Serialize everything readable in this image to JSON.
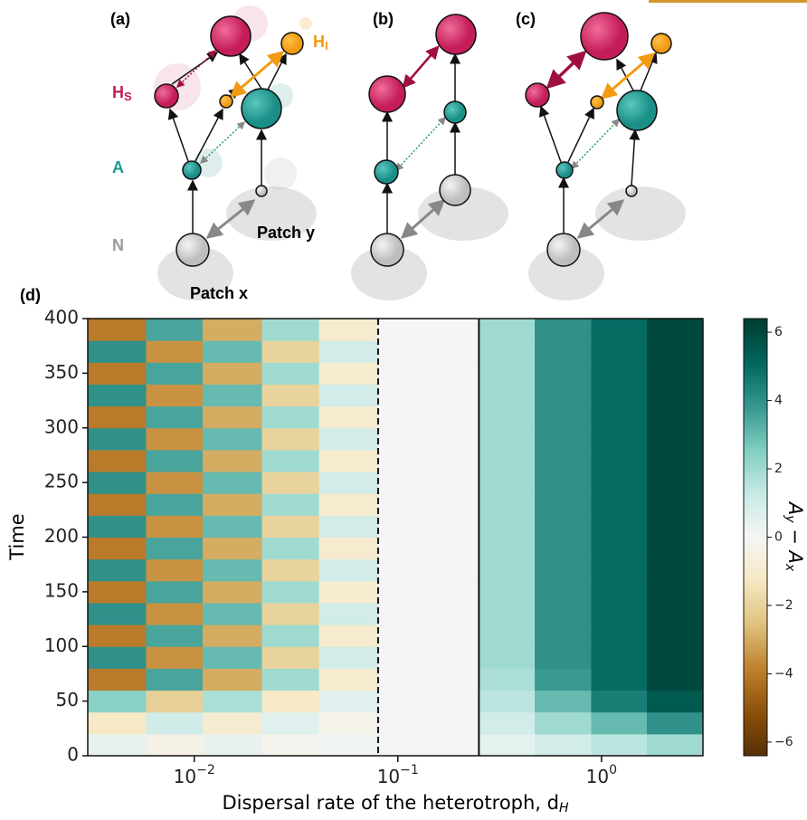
{
  "diagram": {
    "panel_a": "(a)",
    "panel_b": "(b)",
    "panel_c": "(c)",
    "panel_d": "(d)",
    "hs_main": "H",
    "hs_sub": "S",
    "hi_main": "H",
    "hi_sub": "I",
    "a_label": "A",
    "n_label": "N",
    "patch_y": "Patch y",
    "patch_x": "Patch x"
  },
  "chart_data": {
    "type": "heatmap",
    "x_label": "Dispersal rate of the heterotroph, d",
    "x_label_sub": "H",
    "y_label": "Time",
    "xscale": "log",
    "xlim": [
      0.003,
      3.15
    ],
    "ylim": [
      0,
      400
    ],
    "xticks": [
      {
        "value": 0.01,
        "label": "10−2"
      },
      {
        "value": 0.1,
        "label": "10−1"
      },
      {
        "value": 1,
        "label": "100"
      }
    ],
    "yticks": [
      0,
      50,
      100,
      150,
      200,
      250,
      300,
      350,
      400
    ],
    "x_edges": [
      0.003,
      0.0058,
      0.011,
      0.0215,
      0.041,
      0.08,
      0.25,
      0.47,
      0.89,
      1.67,
      3.15
    ],
    "y_edges": [
      0,
      20,
      40,
      60,
      80,
      100,
      120,
      140,
      160,
      180,
      200,
      220,
      240,
      260,
      280,
      300,
      320,
      340,
      360,
      380,
      400
    ],
    "z": [
      [
        0.4,
        -0.35,
        0.3,
        -0.2,
        0.1,
        0,
        0.5,
        1,
        1.5,
        2
      ],
      [
        -1.2,
        1.05,
        -0.9,
        0.6,
        -0.3,
        0,
        1,
        2,
        3,
        4
      ],
      [
        2.4,
        -2.1,
        1.8,
        -1.2,
        0.6,
        0,
        1.5,
        3,
        4.5,
        5.5
      ],
      [
        -4,
        3.5,
        -3,
        2,
        -1,
        0,
        1.8,
        3.8,
        5,
        6
      ],
      [
        4,
        -3.5,
        3,
        -2,
        1,
        0,
        2,
        4,
        5,
        6
      ],
      [
        -4,
        3.5,
        -3,
        2,
        -1,
        0,
        2,
        4,
        5,
        6
      ],
      [
        4,
        -3.5,
        3,
        -2,
        1,
        0,
        2,
        4,
        5,
        6
      ],
      [
        -4,
        3.5,
        -3,
        2,
        -1,
        0,
        2,
        4,
        5,
        6
      ],
      [
        4,
        -3.5,
        3,
        -2,
        1,
        0,
        2,
        4,
        5,
        6
      ],
      [
        -4,
        3.5,
        -3,
        2,
        -1,
        0,
        2,
        4,
        5,
        6
      ],
      [
        4,
        -3.5,
        3,
        -2,
        1,
        0,
        2,
        4,
        5,
        6
      ],
      [
        -4,
        3.5,
        -3,
        2,
        -1,
        0,
        2,
        4,
        5,
        6
      ],
      [
        4,
        -3.5,
        3,
        -2,
        1,
        0,
        2,
        4,
        5,
        6
      ],
      [
        -4,
        3.5,
        -3,
        2,
        -1,
        0,
        2,
        4,
        5,
        6
      ],
      [
        4,
        -3.5,
        3,
        -2,
        1,
        0,
        2,
        4,
        5,
        6
      ],
      [
        -4,
        3.5,
        -3,
        2,
        -1,
        0,
        2,
        4,
        5,
        6
      ],
      [
        4,
        -3.5,
        3,
        -2,
        1,
        0,
        2,
        4,
        5,
        6
      ],
      [
        -4,
        3.5,
        -3,
        2,
        -1,
        0,
        2,
        4,
        5,
        6
      ],
      [
        4,
        -3.5,
        3,
        -2,
        1,
        0,
        2,
        4,
        5,
        6
      ],
      [
        -4,
        3.5,
        -3,
        2,
        -1,
        0,
        2,
        4,
        5,
        6
      ]
    ],
    "vlines": [
      {
        "x": 0.08,
        "style": "dashed"
      },
      {
        "x": 0.25,
        "style": "solid"
      }
    ],
    "colormap": "BrBG",
    "clim": [
      -6.4,
      6.4
    ],
    "colorbar_ticks": [
      {
        "value": -6,
        "label": "−6"
      },
      {
        "value": -4,
        "label": "−4"
      },
      {
        "value": -2,
        "label": "−2"
      },
      0,
      2,
      4,
      6
    ],
    "colorbar_label": {
      "main1": "A",
      "sub1": "y",
      "op": " − ",
      "main2": "A",
      "sub2": "x"
    }
  }
}
